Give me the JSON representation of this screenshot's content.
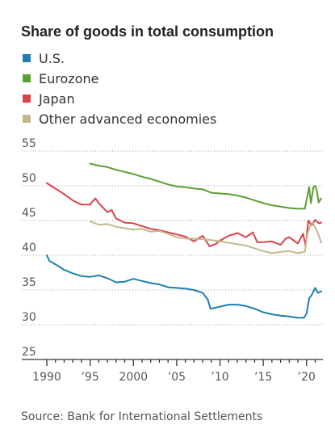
{
  "chart_data": {
    "type": "line",
    "title": "Share of goods in total consumption",
    "source": "Source: Bank for International Settlements",
    "legend_placement": "top-left",
    "grid": true,
    "xlim": [
      1990,
      2021.7
    ],
    "ylim": [
      25,
      55
    ],
    "x_ticks": [
      1990,
      1995,
      2000,
      2005,
      2010,
      2015,
      2020
    ],
    "x_tick_labels": [
      "1990",
      "’95",
      "2000",
      "’05",
      "’10",
      "’15",
      "’20"
    ],
    "y_ticks": [
      25,
      30,
      35,
      40,
      45,
      50,
      55
    ],
    "y_tick_labels": [
      "25",
      "30",
      "35",
      "40",
      "45",
      "50",
      "55"
    ],
    "series": [
      {
        "name": "U.S.",
        "color": "#1f7fb0",
        "points": [
          [
            1990,
            40.0
          ],
          [
            1990.3,
            39.2
          ],
          [
            1991,
            38.7
          ],
          [
            1991.5,
            38.3
          ],
          [
            1992,
            37.9
          ],
          [
            1993,
            37.4
          ],
          [
            1994,
            37.0
          ],
          [
            1995,
            36.9
          ],
          [
            1996,
            37.1
          ],
          [
            1997,
            36.7
          ],
          [
            1998,
            36.1
          ],
          [
            1999,
            36.2
          ],
          [
            2000,
            36.6
          ],
          [
            2001,
            36.3
          ],
          [
            2002,
            36.0
          ],
          [
            2003,
            35.8
          ],
          [
            2004,
            35.4
          ],
          [
            2005,
            35.3
          ],
          [
            2006,
            35.2
          ],
          [
            2007,
            35.0
          ],
          [
            2008,
            34.6
          ],
          [
            2008.6,
            33.6
          ],
          [
            2008.9,
            32.3
          ],
          [
            2009.3,
            32.4
          ],
          [
            2010,
            32.6
          ],
          [
            2011,
            32.9
          ],
          [
            2012,
            32.9
          ],
          [
            2013,
            32.7
          ],
          [
            2014,
            32.3
          ],
          [
            2015,
            31.8
          ],
          [
            2016,
            31.5
          ],
          [
            2017,
            31.3
          ],
          [
            2018,
            31.2
          ],
          [
            2019,
            31.0
          ],
          [
            2019.7,
            31.0
          ],
          [
            2020.0,
            31.6
          ],
          [
            2020.3,
            33.8
          ],
          [
            2020.6,
            34.3
          ],
          [
            2021.0,
            35.3
          ],
          [
            2021.3,
            34.6
          ],
          [
            2021.7,
            34.8
          ]
        ]
      },
      {
        "name": "Eurozone",
        "color": "#5ba033",
        "points": [
          [
            1995,
            53.2
          ],
          [
            1996,
            52.9
          ],
          [
            1997,
            52.7
          ],
          [
            1998,
            52.3
          ],
          [
            1999,
            52.0
          ],
          [
            2000,
            51.7
          ],
          [
            2001,
            51.3
          ],
          [
            2002,
            51.0
          ],
          [
            2003,
            50.6
          ],
          [
            2004,
            50.2
          ],
          [
            2005,
            49.9
          ],
          [
            2006,
            49.8
          ],
          [
            2007,
            49.6
          ],
          [
            2008,
            49.5
          ],
          [
            2009,
            49.0
          ],
          [
            2010,
            48.9
          ],
          [
            2011,
            48.8
          ],
          [
            2012,
            48.6
          ],
          [
            2013,
            48.3
          ],
          [
            2014,
            47.9
          ],
          [
            2015,
            47.5
          ],
          [
            2016,
            47.2
          ],
          [
            2017,
            47.0
          ],
          [
            2018,
            46.8
          ],
          [
            2019,
            46.7
          ],
          [
            2019.8,
            46.7
          ],
          [
            2020.0,
            48.0
          ],
          [
            2020.3,
            49.8
          ],
          [
            2020.5,
            47.5
          ],
          [
            2020.8,
            49.8
          ],
          [
            2021.0,
            50.0
          ],
          [
            2021.2,
            49.2
          ],
          [
            2021.4,
            47.6
          ],
          [
            2021.7,
            48.2
          ]
        ]
      },
      {
        "name": "Japan",
        "color": "#d9434c",
        "points": [
          [
            1990,
            50.4
          ],
          [
            1991,
            49.6
          ],
          [
            1992,
            48.8
          ],
          [
            1993,
            47.9
          ],
          [
            1994,
            47.3
          ],
          [
            1995,
            47.3
          ],
          [
            1995.6,
            48.2
          ],
          [
            1996,
            47.5
          ],
          [
            1997,
            46.2
          ],
          [
            1997.5,
            46.5
          ],
          [
            1998,
            45.3
          ],
          [
            1999,
            44.7
          ],
          [
            2000,
            44.6
          ],
          [
            2001,
            44.2
          ],
          [
            2002,
            43.8
          ],
          [
            2003,
            43.6
          ],
          [
            2004,
            43.3
          ],
          [
            2005,
            43.0
          ],
          [
            2006,
            42.7
          ],
          [
            2007,
            42.0
          ],
          [
            2008,
            42.8
          ],
          [
            2008.8,
            41.3
          ],
          [
            2009.5,
            41.6
          ],
          [
            2010,
            42.1
          ],
          [
            2011,
            42.8
          ],
          [
            2012,
            43.2
          ],
          [
            2013,
            42.6
          ],
          [
            2013.8,
            43.3
          ],
          [
            2014.3,
            41.9
          ],
          [
            2015,
            41.9
          ],
          [
            2016,
            42.0
          ],
          [
            2017,
            41.5
          ],
          [
            2017.6,
            42.4
          ],
          [
            2018,
            42.6
          ],
          [
            2019,
            41.7
          ],
          [
            2019.6,
            43.1
          ],
          [
            2019.9,
            41.3
          ],
          [
            2020.2,
            45.0
          ],
          [
            2020.6,
            44.3
          ],
          [
            2021.0,
            45.1
          ],
          [
            2021.4,
            44.6
          ],
          [
            2021.7,
            44.7
          ]
        ]
      },
      {
        "name": "Other advanced economies",
        "color": "#c2b88f",
        "points": [
          [
            1995,
            44.9
          ],
          [
            1996,
            44.4
          ],
          [
            1997,
            44.5
          ],
          [
            1998,
            44.1
          ],
          [
            1999,
            43.9
          ],
          [
            2000,
            43.7
          ],
          [
            2001,
            43.8
          ],
          [
            2002,
            43.4
          ],
          [
            2003,
            43.5
          ],
          [
            2004,
            43.1
          ],
          [
            2005,
            42.6
          ],
          [
            2006,
            42.4
          ],
          [
            2007,
            42.4
          ],
          [
            2008,
            42.3
          ],
          [
            2009,
            42.2
          ],
          [
            2010,
            42.0
          ],
          [
            2011,
            41.8
          ],
          [
            2012,
            41.6
          ],
          [
            2013,
            41.4
          ],
          [
            2014,
            41.0
          ],
          [
            2015,
            40.6
          ],
          [
            2016,
            40.3
          ],
          [
            2017,
            40.5
          ],
          [
            2018,
            40.6
          ],
          [
            2019,
            40.3
          ],
          [
            2019.8,
            40.5
          ],
          [
            2020.1,
            43.0
          ],
          [
            2020.4,
            44.3
          ],
          [
            2020.7,
            44.7
          ],
          [
            2021.0,
            44.0
          ],
          [
            2021.3,
            43.2
          ],
          [
            2021.5,
            42.5
          ],
          [
            2021.7,
            41.8
          ]
        ]
      }
    ]
  }
}
